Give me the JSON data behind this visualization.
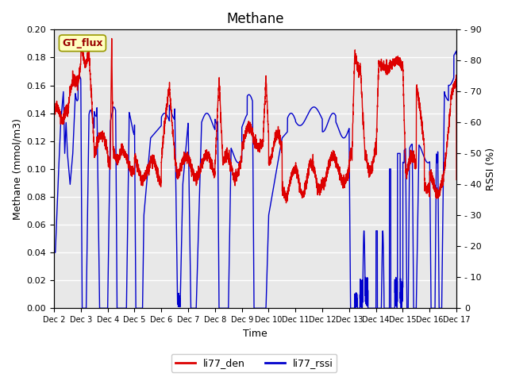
{
  "title": "Methane",
  "ylabel_left": "Methane (mmol/m3)",
  "ylabel_right": "RSSI (%)",
  "xlabel": "Time",
  "ylim_left": [
    0.0,
    0.2
  ],
  "ylim_right": [
    0,
    90
  ],
  "yticks_left": [
    0.0,
    0.02,
    0.04,
    0.06,
    0.08,
    0.1,
    0.12,
    0.14,
    0.16,
    0.18,
    0.2
  ],
  "yticks_right": [
    0,
    10,
    20,
    30,
    40,
    50,
    60,
    70,
    80,
    90
  ],
  "xtick_labels": [
    "Dec 2",
    "Dec 3",
    "Dec 4",
    "Dec 5",
    "Dec 6",
    "Dec 7",
    "Dec 8",
    "Dec 9",
    "Dec 10",
    "Dec 11",
    "Dec 12",
    "Dec 13",
    "Dec 14",
    "Dec 15",
    "Dec 16",
    "Dec 17"
  ],
  "color_red": "#DD0000",
  "color_blue": "#0000CC",
  "plot_bg_color": "#E8E8E8",
  "fig_bg_color": "#FFFFFF",
  "legend_label": "GT_flux",
  "legend_bg": "#FFFFC0",
  "legend_border": "#AAAAAA",
  "legend_text_color": "#990000",
  "line1_label": "li77_den",
  "line2_label": "li77_rssi",
  "line_width": 1.0,
  "title_fontsize": 12,
  "axis_fontsize": 9,
  "tick_fontsize": 8,
  "n_days": 15
}
